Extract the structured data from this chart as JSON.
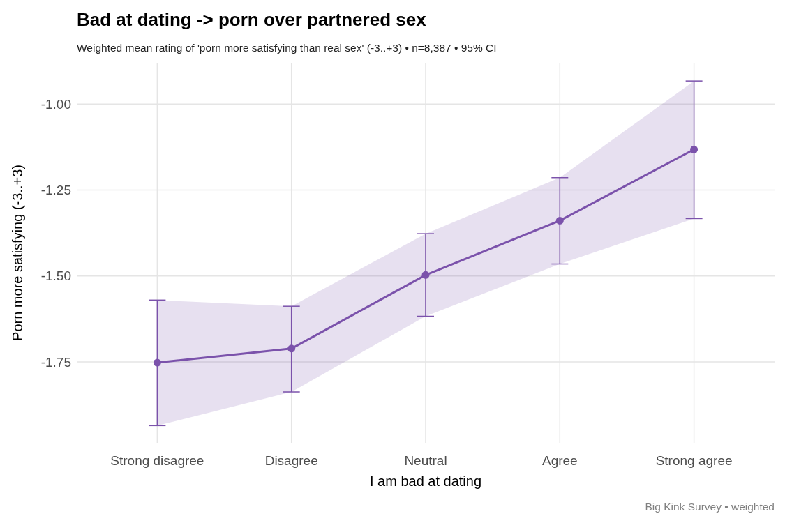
{
  "chart_data": {
    "type": "line",
    "title": "Bad at dating -> porn over partnered sex",
    "subtitle": "Weighted mean rating of 'porn more satisfying than real sex' (-3..+3)  •  n=8,387  •  95% CI",
    "xlabel": "I am bad at dating",
    "ylabel": "Porn more satisfying (-3..+3)",
    "categories": [
      "Strong disagree",
      "Disagree",
      "Neutral",
      "Agree",
      "Strong agree"
    ],
    "series": [
      {
        "color": "#7b52ab",
        "values": [
          -1.752,
          -1.711,
          -1.497,
          -1.339,
          -1.132
        ],
        "lower": [
          -1.935,
          -1.837,
          -1.617,
          -1.465,
          -1.333
        ],
        "upper": [
          -1.57,
          -1.588,
          -1.377,
          -1.214,
          -0.933
        ],
        "errors": [
          [
            -1.935,
            -1.57
          ],
          [
            -1.837,
            -1.588
          ],
          [
            -1.617,
            -1.377
          ],
          [
            -1.465,
            -1.214
          ],
          [
            -1.333,
            -0.933
          ]
        ]
      }
    ],
    "ylim": [
      -1.985,
      -0.88
    ],
    "yticks": [
      {
        "value": -1.75,
        "label": "-1.75"
      },
      {
        "value": -1.5,
        "label": "-1.50"
      },
      {
        "value": -1.25,
        "label": "-1.25"
      },
      {
        "value": -1,
        "label": "-1.00"
      }
    ],
    "grid": true,
    "marker": "circle",
    "line_style": "solid",
    "annotations": [
      "Big Kink Survey  •  weighted"
    ]
  }
}
